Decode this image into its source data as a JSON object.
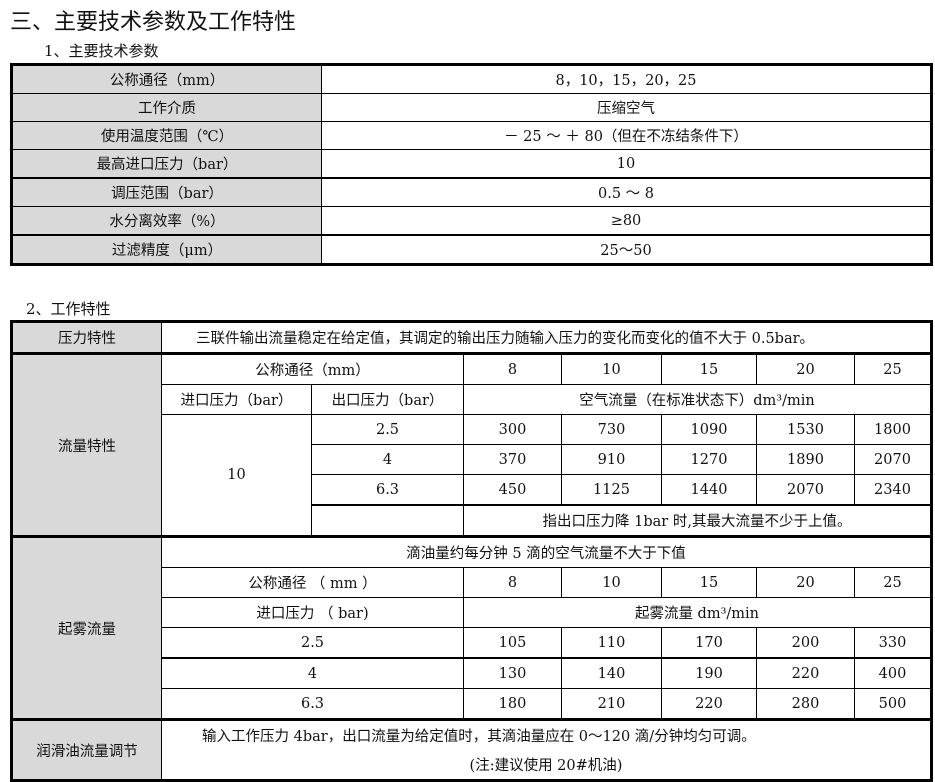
{
  "title": "三、主要技术参数及工作特性",
  "section1": {
    "heading": "1、主要技术参数",
    "rows": [
      {
        "label": "公称通径（mm）",
        "value": "8，10，15，20，25"
      },
      {
        "label": "工作介质",
        "value": "压缩空气"
      },
      {
        "label": "使用温度范围（℃）",
        "value": "－ 25 ～ ＋ 80（但在不冻结条件下）"
      },
      {
        "label": "最高进口压力（bar）",
        "value": "10"
      },
      {
        "label": "调压范围（bar）",
        "value": "0.5 ～ 8"
      },
      {
        "label": "水分离效率（%）",
        "value": "≥80"
      },
      {
        "label": "过滤精度（μm）",
        "value": "25～50"
      }
    ]
  },
  "section2": {
    "heading": "2、工作特性",
    "pressure": {
      "label": "压力特性",
      "text": "三联件输出流量稳定在给定值，其调定的输出压力随输入压力的变化而变化的值不大于 0.5bar。"
    },
    "flow": {
      "label": "流量特性",
      "size_header": "公称通径（mm）",
      "sizes": [
        "8",
        "10",
        "15",
        "20",
        "25"
      ],
      "inlet_header": "进口压力（bar）",
      "outlet_header": "出口压力（bar）",
      "flow_header": "空气流量（在标准状态下）dm³/min",
      "inlet": "10",
      "rows": [
        {
          "outlet": "2.5",
          "values": [
            "300",
            "730",
            "1090",
            "1530",
            "1800"
          ]
        },
        {
          "outlet": "4",
          "values": [
            "370",
            "910",
            "1270",
            "1890",
            "2070"
          ]
        },
        {
          "outlet": "6.3",
          "values": [
            "450",
            "1125",
            "1440",
            "2070",
            "2340"
          ]
        }
      ],
      "note": "指出口压力降 1bar 时,其最大流量不少于上值。"
    },
    "fog": {
      "label": "起雾流量",
      "intro": "滴油量约每分钟 5 滴的空气流量不大于下值",
      "size_header": "公称通径 （ mm ）",
      "sizes": [
        "8",
        "10",
        "15",
        "20",
        "25"
      ],
      "inlet_header": "进口压力 （ bar)",
      "flow_header": "起雾流量 dm³/min",
      "rows": [
        {
          "inlet": "2.5",
          "values": [
            "105",
            "110",
            "170",
            "200",
            "330"
          ]
        },
        {
          "inlet": "4",
          "values": [
            "130",
            "140",
            "190",
            "220",
            "400"
          ]
        },
        {
          "inlet": "6.3",
          "values": [
            "180",
            "210",
            "220",
            "280",
            "500"
          ]
        }
      ]
    },
    "lube": {
      "label": "润滑油流量调节",
      "text": "输入工作压力 4bar，出口流量为给定值时，其滴油量应在 0～120 滴/分钟均匀可调。",
      "note": "(注:建议使用 20#机油)"
    }
  }
}
